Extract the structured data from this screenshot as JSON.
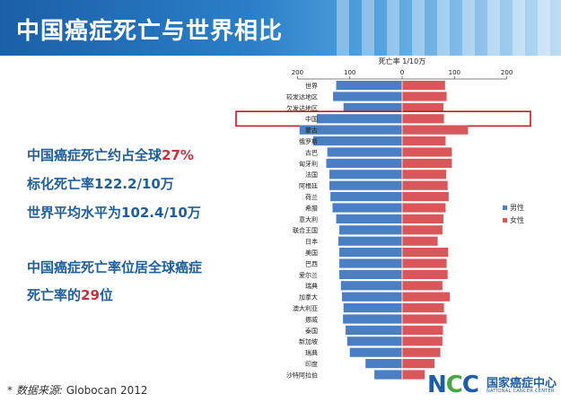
{
  "title": "中国癌症死亡与世界相比",
  "callouts": {
    "line1_prefix": "中国癌症死亡约占全球",
    "line1_highlight": "27%",
    "line2": "标化死亡率122.2/10万",
    "line3": "世界平均水平为102.4/10万",
    "line4": "中国癌症死亡率位居全球癌症",
    "line5_prefix": "死亡率的",
    "line5_highlight": "29",
    "line5_suffix": "位"
  },
  "source": {
    "label": "* 数据来源:",
    "value": "Globocan 2012"
  },
  "logo": {
    "mark": "NCC",
    "name_cn": "国家癌症中心",
    "name_en": "NATIONAL CANCER CENTER"
  },
  "colors": {
    "male": "#4a7fc4",
    "female": "#d9575b",
    "highlight_box": "#d0141e",
    "title_bg": "#1b5fa8"
  },
  "chart_data": {
    "type": "bar",
    "orientation": "horizontal-butterfly",
    "title": "死亡率 1/10万",
    "x_ticks": [
      200,
      100,
      0,
      100,
      200
    ],
    "xlim": [
      -200,
      200
    ],
    "highlight": "中国",
    "categories": [
      "世界",
      "较发达地区",
      "欠发达地区",
      "中国",
      "蒙古",
      "俄罗斯",
      "古巴",
      "匈牙利",
      "法国",
      "阿根廷",
      "荷兰",
      "希腊",
      "意大利",
      "联合王国",
      "日本",
      "美国",
      "巴西",
      "爱尔兰",
      "瑞典",
      "加拿大",
      "澳大利亚",
      "挪威",
      "泰国",
      "新加坡",
      "瑞典",
      "印度",
      "沙特阿拉伯"
    ],
    "series": [
      {
        "name": "男性",
        "values": [
          126,
          132,
          112,
          163,
          196,
          170,
          143,
          145,
          139,
          139,
          137,
          133,
          126,
          120,
          122,
          120,
          120,
          120,
          117,
          115,
          112,
          113,
          108,
          105,
          100,
          70,
          53
        ]
      },
      {
        "name": "女性",
        "values": [
          82,
          85,
          79,
          80,
          126,
          83,
          95,
          95,
          84,
          87,
          89,
          83,
          79,
          77,
          68,
          88,
          85,
          87,
          77,
          91,
          80,
          85,
          78,
          77,
          73,
          62,
          43
        ]
      }
    ],
    "legend": [
      "男性",
      "女性"
    ],
    "legend_position": "right"
  }
}
